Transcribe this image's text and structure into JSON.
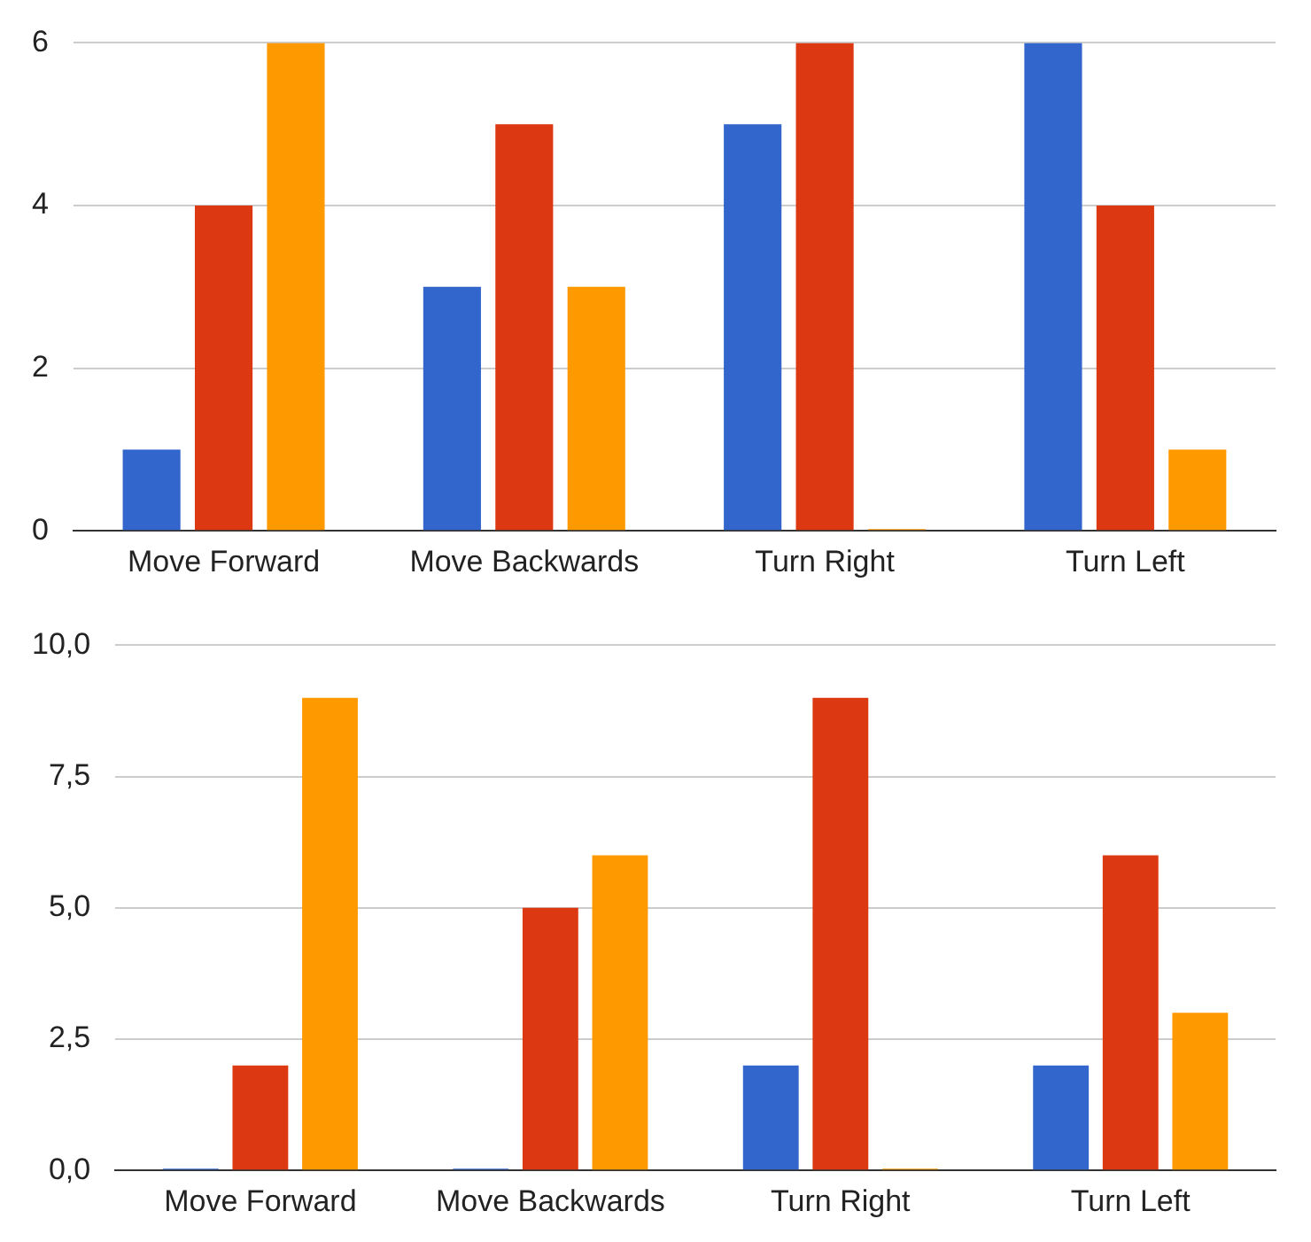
{
  "chart_data": [
    {
      "type": "bar",
      "categories": [
        "Move Forward",
        "Move Backwards",
        "Turn Right",
        "Turn Left"
      ],
      "series": [
        {
          "color": "#3366cc",
          "values": [
            1,
            3,
            5,
            6
          ]
        },
        {
          "color": "#dc3912",
          "values": [
            4,
            5,
            6,
            4
          ]
        },
        {
          "color": "#ff9900",
          "values": [
            6,
            3,
            0,
            1
          ]
        }
      ],
      "ylim": [
        0,
        6
      ],
      "yticks": [
        0,
        2,
        4,
        6
      ],
      "grid": "y",
      "legend": false
    },
    {
      "type": "bar",
      "categories": [
        "Move Forward",
        "Move Backwards",
        "Turn Right",
        "Turn Left"
      ],
      "series": [
        {
          "color": "#3366cc",
          "values": [
            0,
            0,
            2,
            2
          ]
        },
        {
          "color": "#dc3912",
          "values": [
            2,
            5,
            9,
            6
          ]
        },
        {
          "color": "#ff9900",
          "values": [
            9,
            6,
            0,
            3
          ]
        }
      ],
      "ylim": [
        0,
        10
      ],
      "yticks": [
        {
          "value": 0,
          "label": "0,0"
        },
        {
          "value": 2.5,
          "label": "2,5"
        },
        {
          "value": 5,
          "label": "5,0"
        },
        {
          "value": 7.5,
          "label": "7,5"
        },
        {
          "value": 10,
          "label": "10,0"
        }
      ],
      "grid": "y",
      "legend": false
    }
  ]
}
